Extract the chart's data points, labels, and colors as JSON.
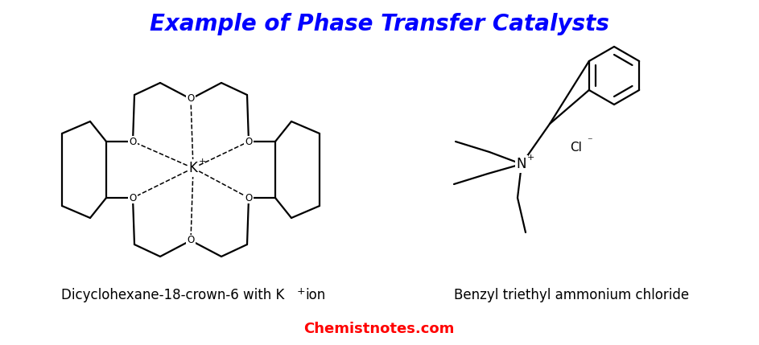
{
  "title": "Example of Phase Transfer Catalysts",
  "title_color": "#0000FF",
  "title_fontsize": 20,
  "label1_text": "Dicyclohexane-18-crown-6 with K",
  "label1_sup": "+",
  "label1_end": " ion",
  "label2": "Benzyl triethyl ammonium chloride",
  "footer": "Chemistnotes.com",
  "footer_color": "#FF0000",
  "footer_fontsize": 13,
  "label_fontsize": 12,
  "bg_color": "#FFFFFF",
  "line_color": "#000000",
  "line_width": 1.6
}
